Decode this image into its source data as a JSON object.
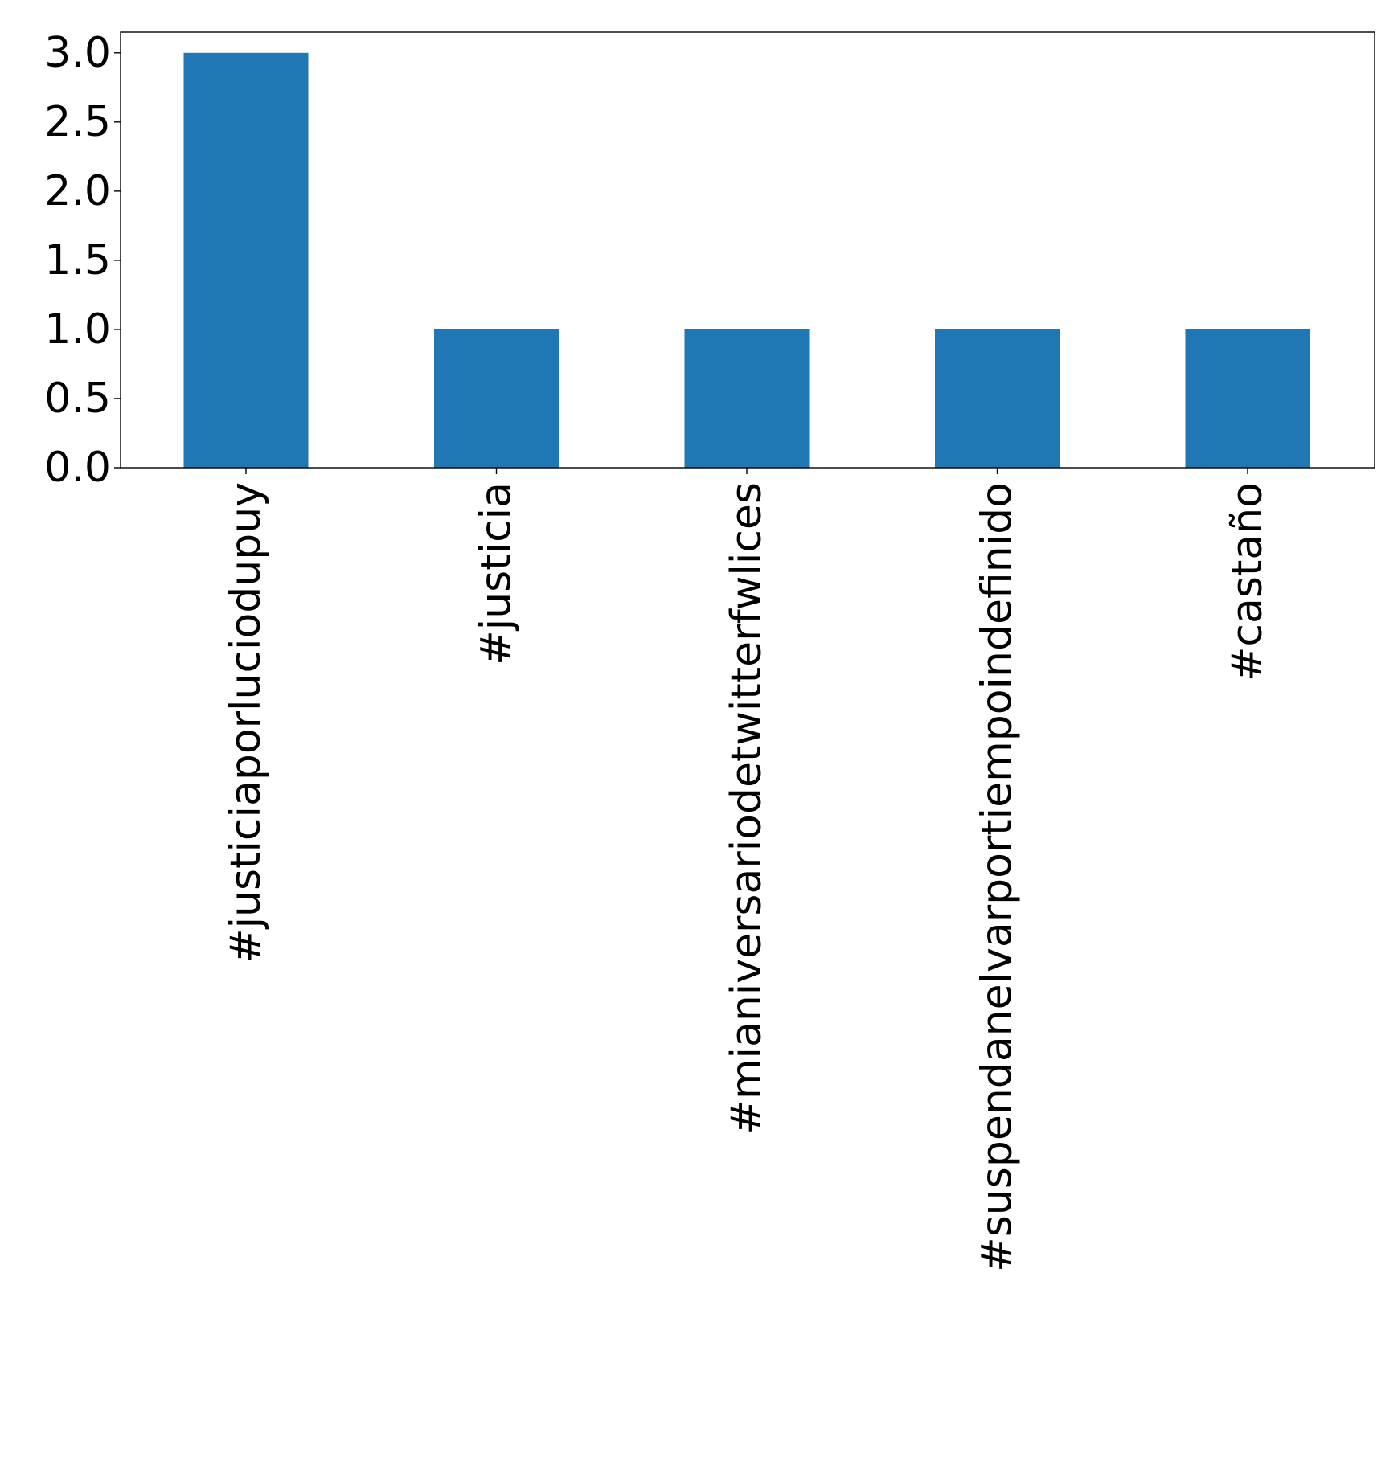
{
  "chart_data": {
    "type": "bar",
    "title": "",
    "xlabel": "",
    "ylabel": "",
    "categories": [
      "#justiciaporluciodupuy",
      "#justicia",
      "#mianiversariodetwitterfwlices",
      "#suspendanelvarportiempoindefinido",
      "#castaño"
    ],
    "values": [
      3,
      1,
      1,
      1,
      1
    ],
    "ylim": [
      0,
      3.15
    ],
    "yticks": [
      "0.0",
      "0.5",
      "1.0",
      "1.5",
      "2.0",
      "2.5",
      "3.0"
    ],
    "bar_color": "#1f77b4",
    "grid": false,
    "legend": "none"
  }
}
